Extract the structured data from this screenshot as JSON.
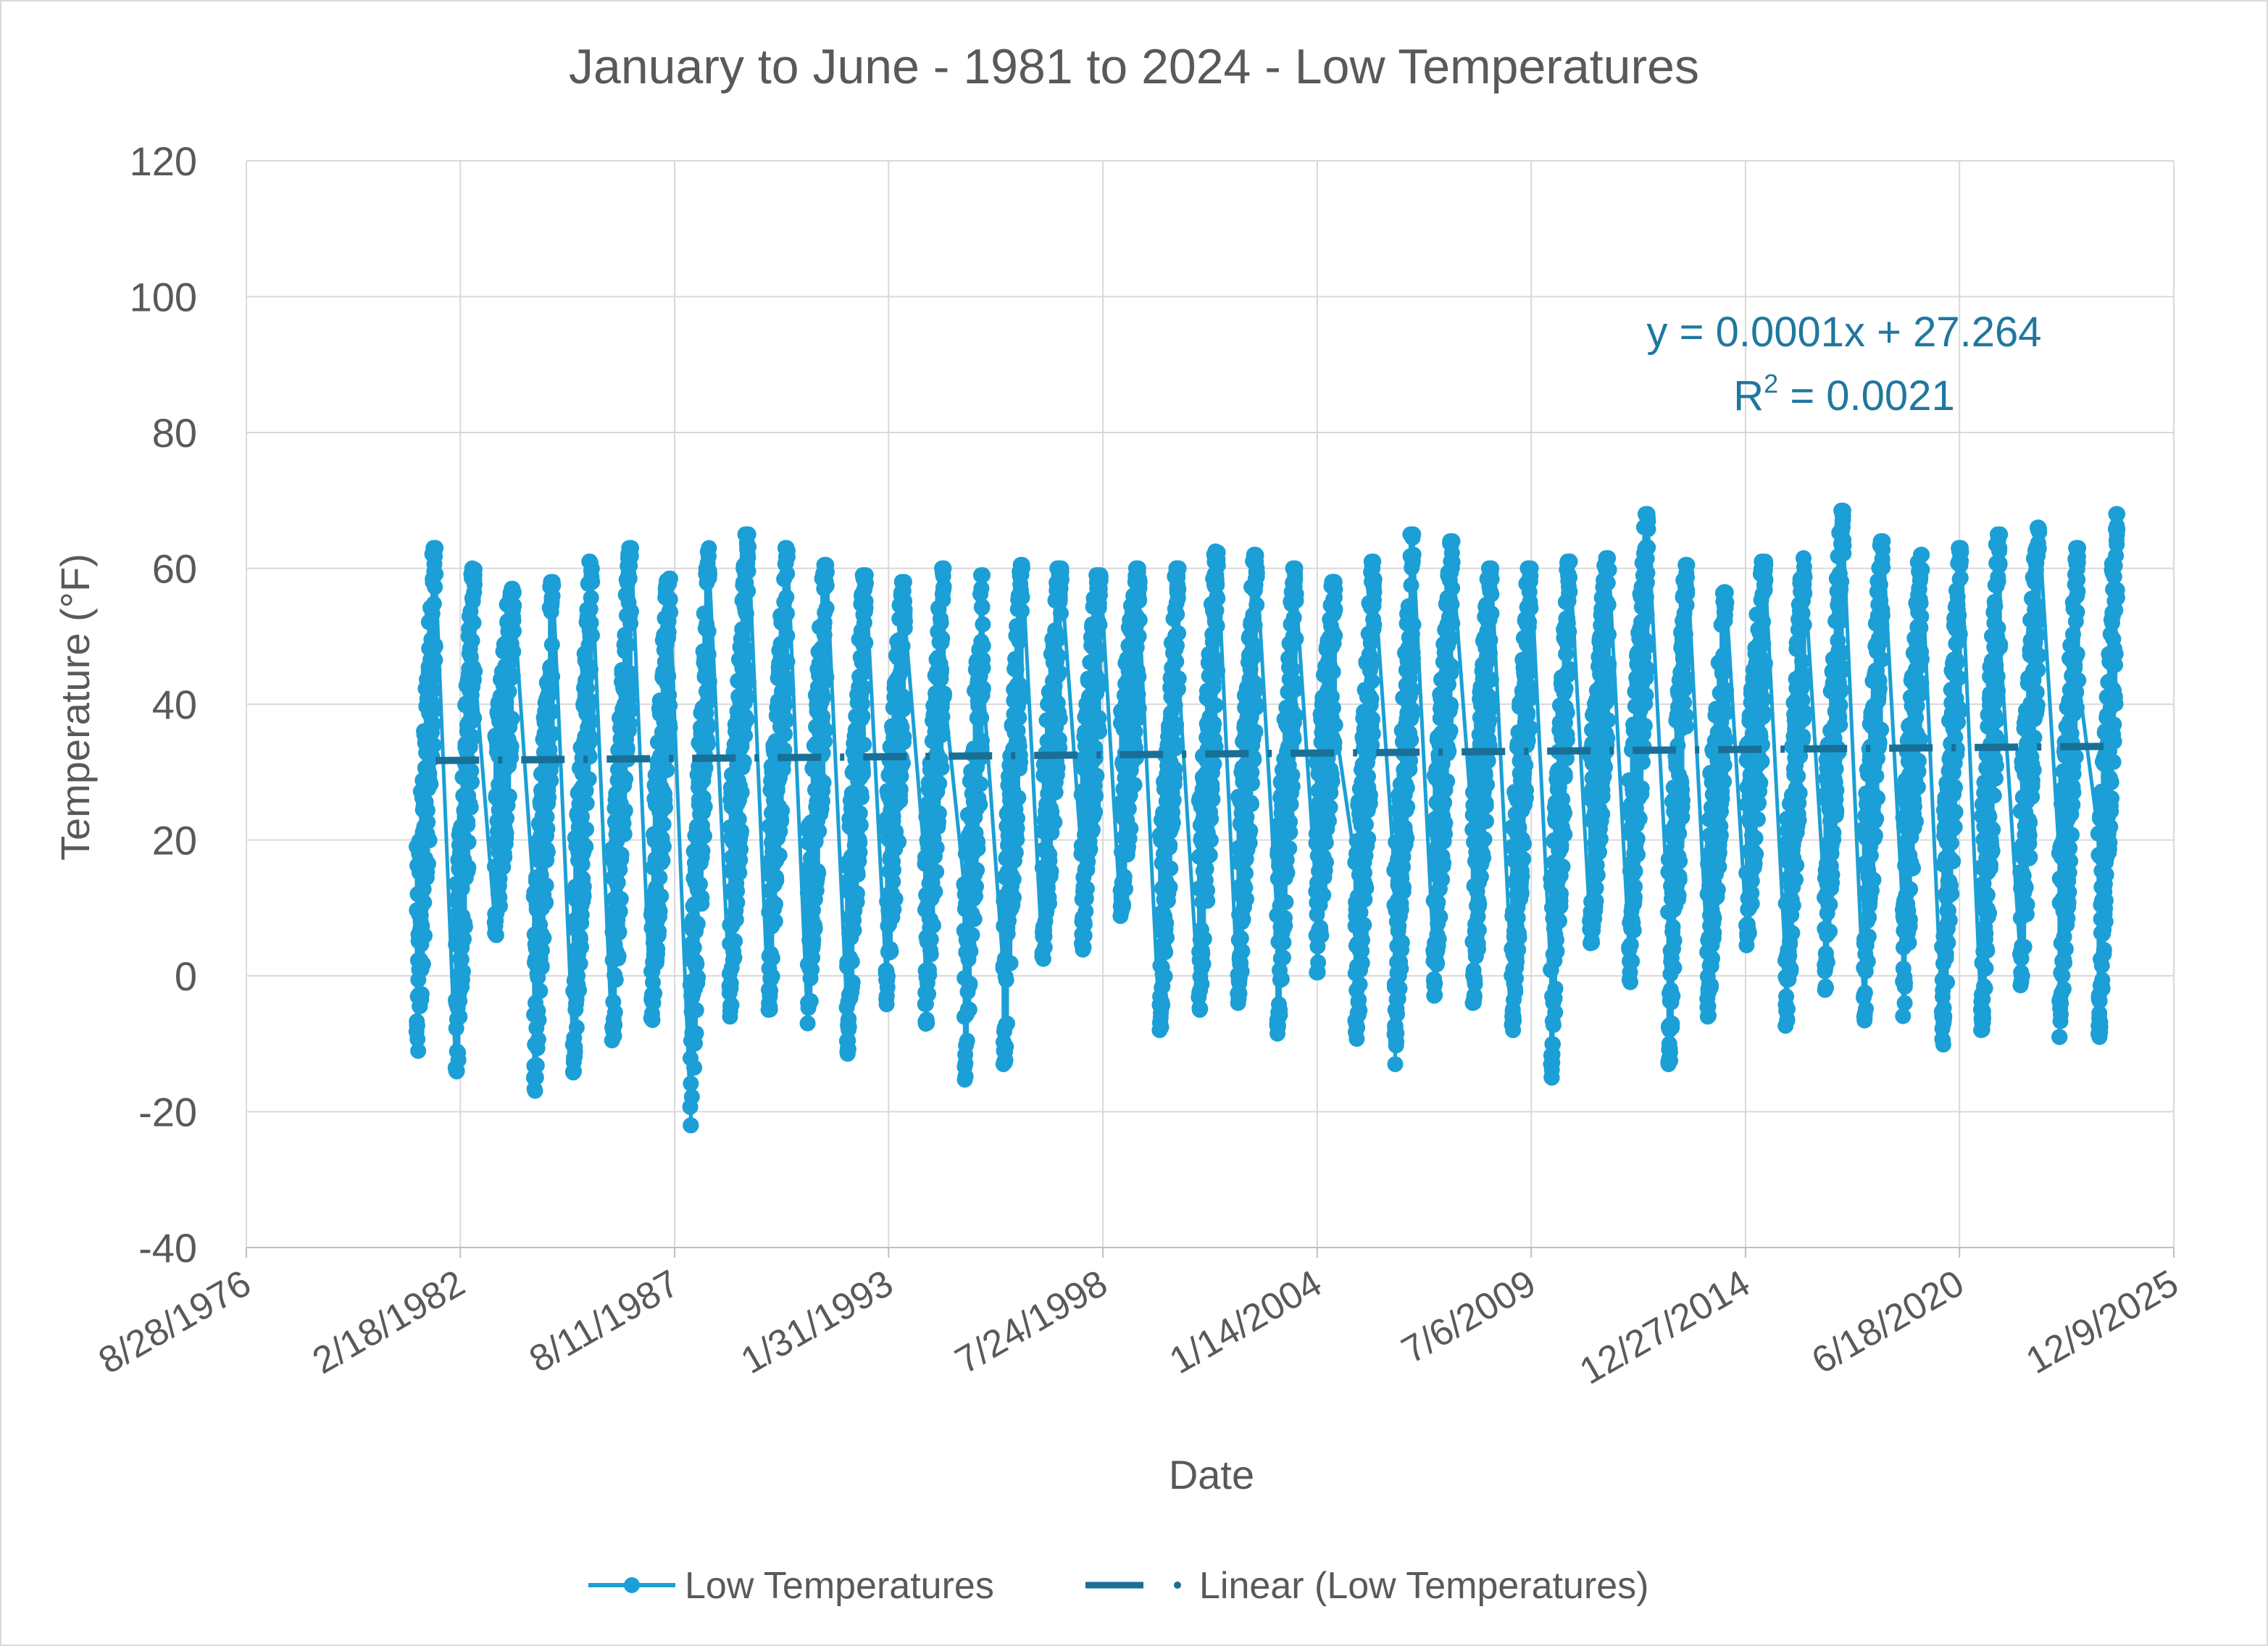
{
  "chart_data": {
    "type": "line",
    "title": "January to June - 1981 to 2024 - Low Temperatures",
    "xlabel": "Date",
    "ylabel": "Temperature (°F)",
    "ylim": [
      -40,
      120
    ],
    "y_ticks": [
      "120",
      "100",
      "80",
      "60",
      "40",
      "20",
      "0",
      "-20",
      "-40"
    ],
    "x_ticks": [
      "8/28/1976",
      "2/18/1982",
      "8/11/1987",
      "1/31/1993",
      "7/24/1998",
      "1/14/2004",
      "7/6/2009",
      "12/27/2014",
      "6/18/2020",
      "12/9/2025"
    ],
    "x_tick_years": [
      1976.66,
      1982.13,
      1987.61,
      1993.08,
      1998.56,
      2004.04,
      2009.51,
      2014.99,
      2020.46,
      2025.94
    ],
    "grid": true,
    "legend_position": "bottom",
    "series": [
      {
        "name": "Low Temperatures",
        "color": "#1b9fd6",
        "style": "line-with-markers",
        "years": [
          1981,
          1982,
          1983,
          1984,
          1985,
          1986,
          1987,
          1988,
          1989,
          1990,
          1991,
          1992,
          1993,
          1994,
          1995,
          1996,
          1997,
          1998,
          1999,
          2000,
          2001,
          2002,
          2003,
          2004,
          2005,
          2006,
          2007,
          2008,
          2009,
          2010,
          2011,
          2012,
          2013,
          2014,
          2015,
          2016,
          2017,
          2018,
          2019,
          2020,
          2021,
          2022,
          2023,
          2024
        ],
        "season_min": [
          -12,
          -16.5,
          6,
          -19,
          -14.5,
          -9.5,
          -6.5,
          -22,
          -6,
          -5,
          -7,
          -11.5,
          -5,
          -9,
          -16,
          -13.5,
          1.5,
          3,
          8.5,
          -8,
          -5,
          -4,
          -8.5,
          0.5,
          -12,
          -13,
          -3,
          -4,
          -8,
          -15,
          3.5,
          -1,
          -13,
          -6,
          4.5,
          -9,
          -2.5,
          -7,
          -6,
          -10.5,
          -8,
          -2,
          -9,
          -9
        ],
        "season_max": [
          63,
          60,
          57,
          58,
          61,
          63,
          58.5,
          63,
          65,
          63,
          60.5,
          59,
          58,
          60,
          59,
          60.5,
          60,
          59,
          60,
          60,
          62.5,
          62,
          60,
          58,
          61,
          65,
          64,
          60,
          60,
          61,
          61.5,
          68,
          60.5,
          56.5,
          61,
          61.5,
          68.5,
          64,
          62,
          63,
          65,
          66,
          63,
          68
        ]
      },
      {
        "name": "Linear (Low Temperatures)",
        "color": "#1a6f96",
        "style": "dash-dot",
        "trend_start": [
          1981.5,
          31.7
        ],
        "trend_end": [
          2024.5,
          33.8
        ]
      }
    ],
    "trendline_equation": "y = 0.0001x + 27.264",
    "r_squared_prefix": "R",
    "r_squared_exponent": "2",
    "r_squared_value": " = 0.0021"
  }
}
